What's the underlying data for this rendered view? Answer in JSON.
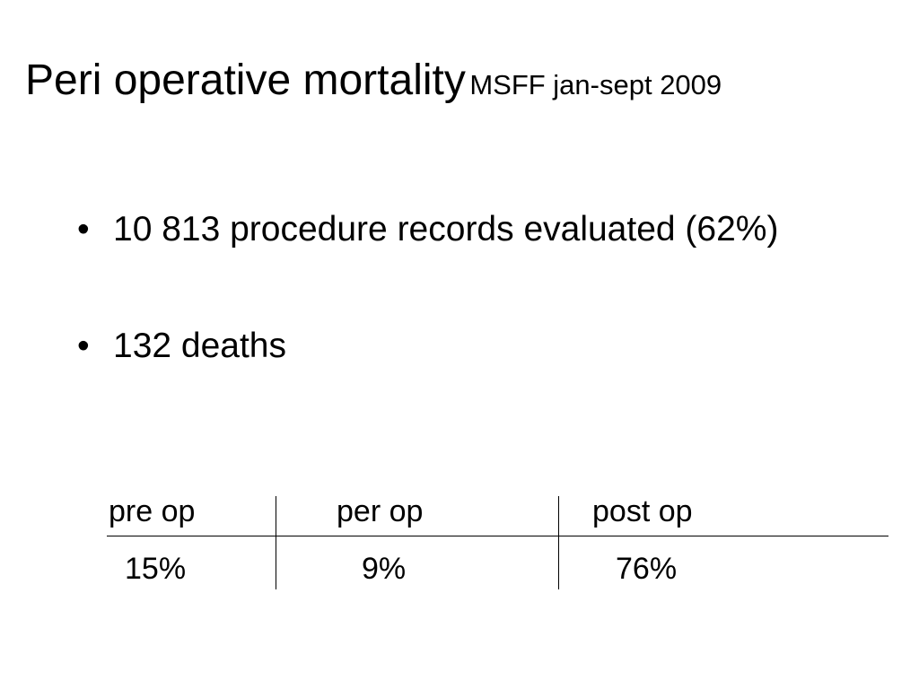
{
  "slide": {
    "title": "Peri operative mortality",
    "subtitle": "MSFF jan-sept 2009",
    "bullet_glyph": "•",
    "bullets": [
      "10 813 procedure records evaluated (62%)",
      "132 deaths"
    ],
    "table": {
      "headers": [
        "pre op",
        "per op",
        "post op"
      ],
      "values": [
        "15%",
        "9%",
        "76%"
      ]
    }
  }
}
